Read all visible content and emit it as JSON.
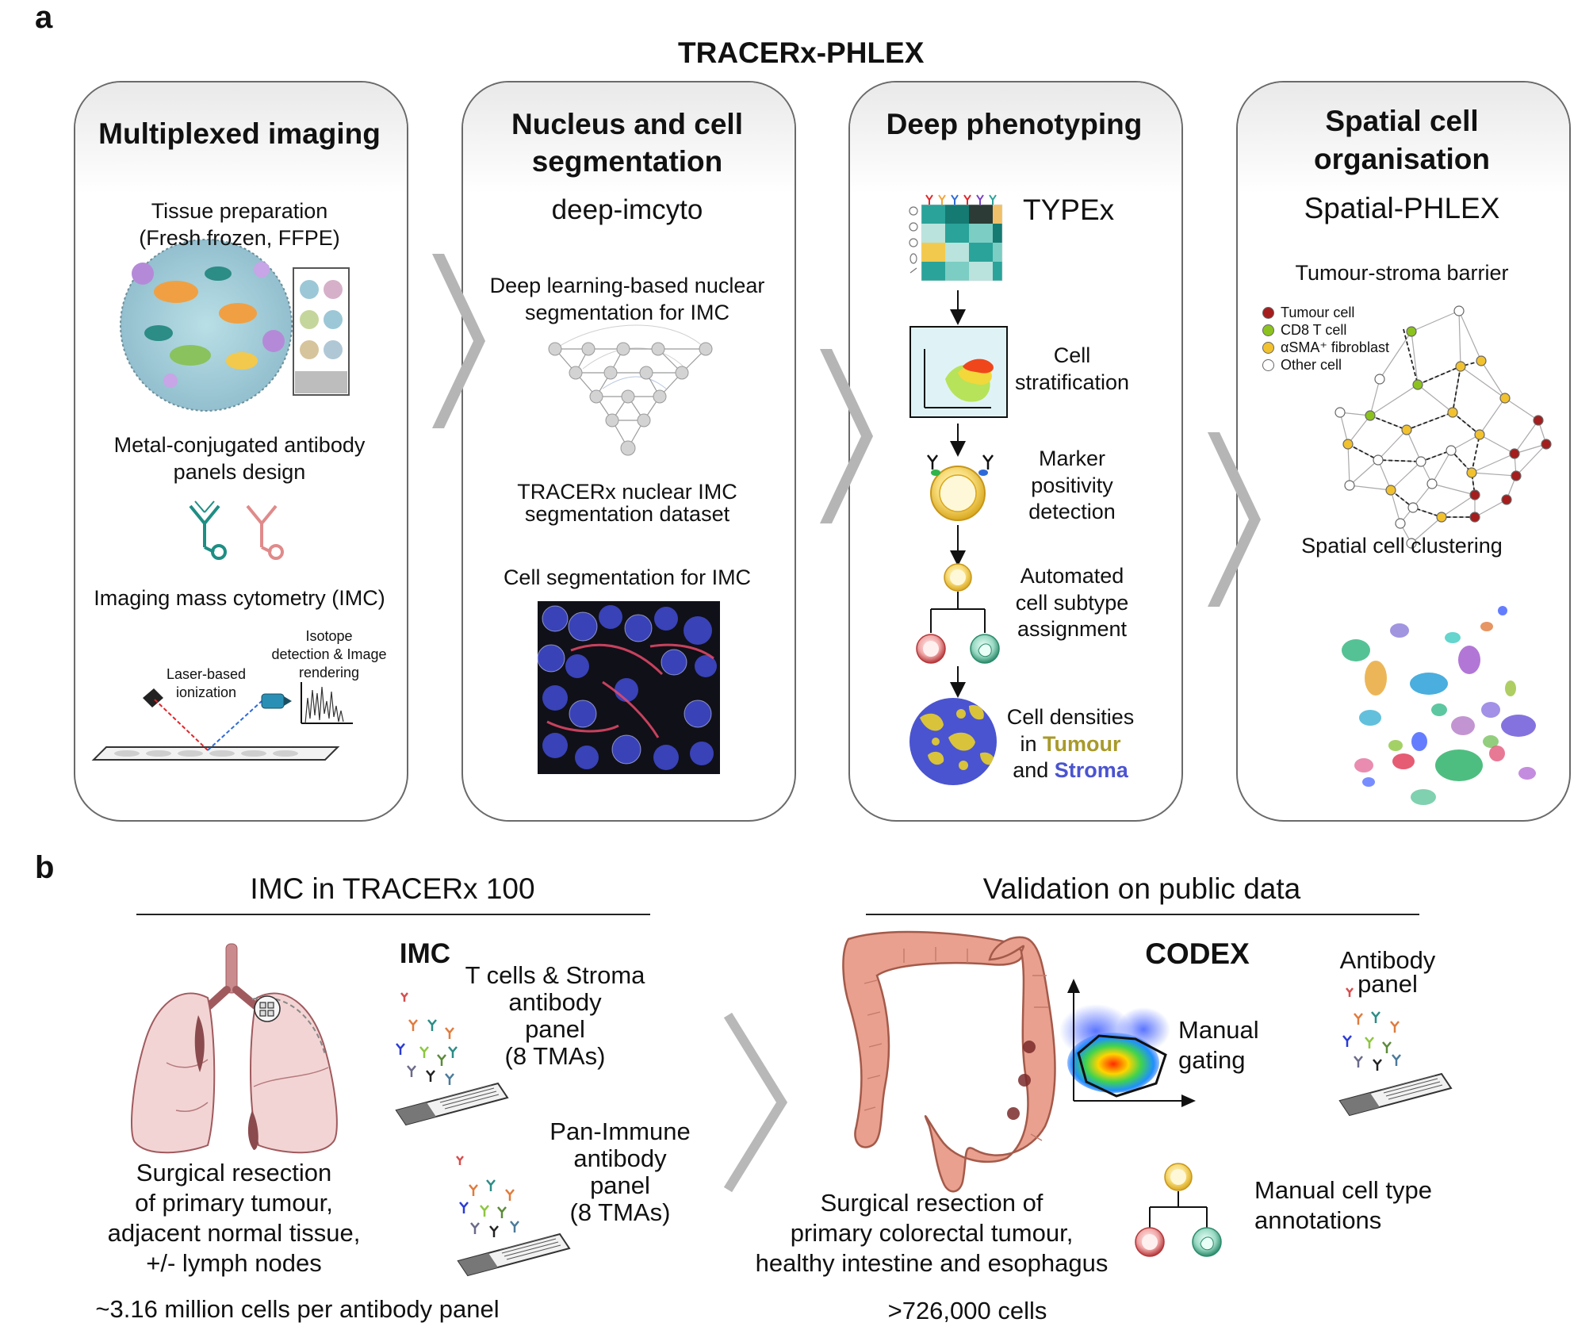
{
  "panel_labels": {
    "a": "a",
    "b": "b"
  },
  "a": {
    "title": "TRACERx-PHLEX",
    "cards": [
      {
        "title": "Multiplexed imaging",
        "items": [
          {
            "line1": "Tissue preparation",
            "line2": "(Fresh frozen, FFPE)"
          },
          {
            "line1": "Metal-conjugated antibody",
            "line2": "panels design"
          },
          {
            "line1": "Imaging mass cytometry (IMC)"
          }
        ],
        "imc_labels": {
          "laser_line1": "Laser-based",
          "laser_line2": "ionization",
          "isotope_line1": "Isotope",
          "isotope_line2": "detection & Image",
          "isotope_line3": "rendering"
        }
      },
      {
        "title_line1": "Nucleus and cell",
        "title_line2": "segmentation",
        "subtitle": "deep-imcyto",
        "items": [
          {
            "line1": "Deep learning-based nuclear",
            "line2": "segmentation for IMC"
          },
          {
            "line1": "TRACERx nuclear IMC",
            "line2": "segmentation dataset"
          },
          {
            "line1": "Cell segmentation for IMC"
          }
        ]
      },
      {
        "title": "Deep phenotyping",
        "subtitle": "TYPEx",
        "steps": [
          {
            "line1": "Cell",
            "line2": "stratification"
          },
          {
            "line1": "Marker",
            "line2": "positivity",
            "line3": "detection"
          },
          {
            "line1": "Automated",
            "line2": "cell subtype",
            "line3": "assignment"
          }
        ],
        "densities": {
          "line1": "Cell densities",
          "in": "in ",
          "tumour": "Tumour",
          "and": "and ",
          "stroma": "Stroma"
        }
      },
      {
        "title_line1": "Spatial cell",
        "title_line2": "organisation",
        "subtitle": "Spatial-PHLEX",
        "barrier_label": "Tumour-stroma barrier",
        "legend": [
          {
            "label": "Tumour cell",
            "color": "#a51d1d"
          },
          {
            "label": "CD8 T cell",
            "color": "#8cc21f"
          },
          {
            "label": "αSMA⁺ fibroblast",
            "color": "#f2c12e"
          },
          {
            "label": "Other cell",
            "color": "#ffffff"
          }
        ],
        "clustering_label": "Spatial cell clustering"
      }
    ]
  },
  "b": {
    "left": {
      "heading": "IMC in TRACERx 100",
      "imc_label": "IMC",
      "panel1": {
        "line1": "T cells & Stroma",
        "line2": "antibody",
        "line3": "panel",
        "line4": "(8 TMAs)"
      },
      "panel2": {
        "line1": "Pan-Immune",
        "line2": "antibody",
        "line3": "panel",
        "line4": "(8 TMAs)"
      },
      "resection": {
        "line1": "Surgical resection",
        "line2": "of primary tumour,",
        "line3": "adjacent normal tissue,",
        "line4": "+/- lymph nodes"
      },
      "count": "~3.16 million cells per antibody panel"
    },
    "right": {
      "heading": "Validation on public data",
      "codex_label": "CODEX",
      "antibody": {
        "line1": "Antibody",
        "line2": "panel"
      },
      "gating": {
        "line1": "Manual",
        "line2": "gating"
      },
      "annotations": {
        "line1": "Manual cell type",
        "line2": "annotations"
      },
      "resection": {
        "line1": "Surgical resection of",
        "line2": "primary colorectal tumour,",
        "line3": "healthy intestine and esophagus"
      },
      "count": ">726,000 cells"
    }
  }
}
